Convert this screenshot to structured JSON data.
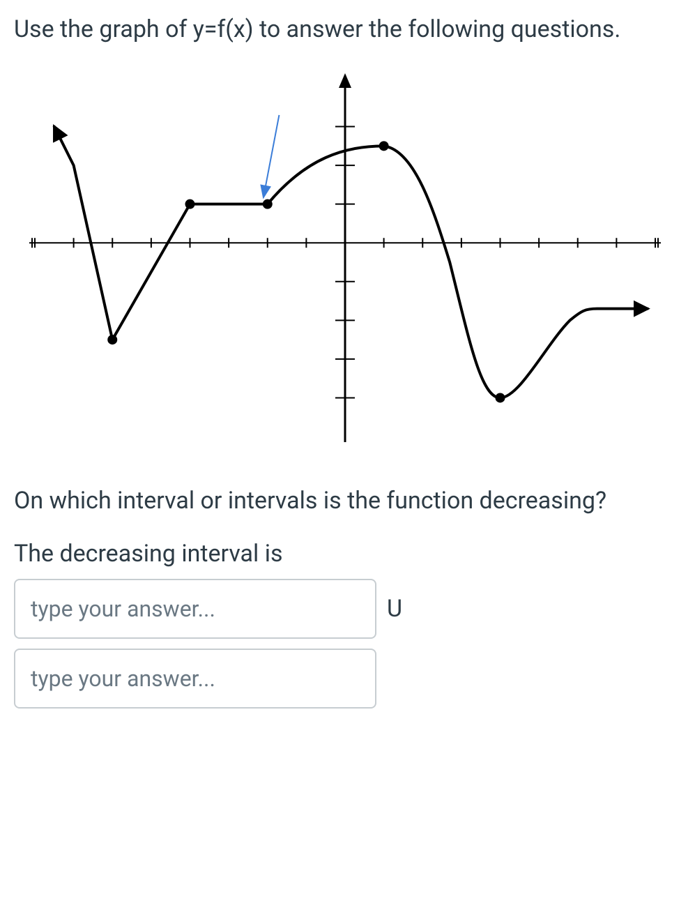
{
  "question": {
    "prompt": "Use the graph of y=f(x) to answer the following questions.",
    "sub_prompt": "On which interval or intervals is the function decreasing?",
    "answer_label": "The decreasing interval is",
    "input_placeholder_1": "type your answer...",
    "input_placeholder_2": "type your answer...",
    "union_symbol": "U"
  },
  "graph": {
    "type": "line",
    "x_range": [
      -8,
      8
    ],
    "y_range": [
      -5,
      4
    ],
    "axis_color": "#000000",
    "tick_color": "#000000",
    "arrow_color": "#3b7dd8",
    "curve_color": "#000000",
    "curve_width": 4,
    "point_color": "#000000",
    "point_radius": 7,
    "x_ticks": [
      -8,
      -7,
      -6,
      -5,
      -4,
      -3,
      -2,
      -1,
      1,
      2,
      3,
      4,
      5,
      6,
      7,
      8
    ],
    "y_ticks": [
      -4,
      -3,
      -2,
      -1,
      1,
      2,
      3
    ],
    "arrow_indicator": {
      "start": [
        -1.7,
        3.3
      ],
      "end": [
        -2.1,
        1.2
      ]
    },
    "closed_points": [
      [
        -6,
        -2.5
      ],
      [
        -4,
        1
      ],
      [
        -2,
        1
      ],
      [
        1,
        2.5
      ],
      [
        4,
        -4
      ]
    ],
    "segments": [
      {
        "type": "arrow_start",
        "points": [
          [
            -7.5,
            3.0
          ],
          [
            -7,
            2
          ]
        ]
      },
      {
        "type": "line",
        "points": [
          [
            -7,
            2
          ],
          [
            -6,
            -2.5
          ]
        ]
      },
      {
        "type": "line",
        "points": [
          [
            -6,
            -2.5
          ],
          [
            -4,
            1
          ]
        ]
      },
      {
        "type": "line",
        "points": [
          [
            -4,
            1
          ],
          [
            -2,
            1
          ]
        ]
      },
      {
        "type": "bezier",
        "points": [
          [
            -2,
            1
          ],
          [
            -1,
            2.2
          ],
          [
            0,
            2.5
          ],
          [
            1,
            2.5
          ]
        ]
      },
      {
        "type": "bezier",
        "points": [
          [
            1,
            2.5
          ],
          [
            1.8,
            2.4
          ],
          [
            2.3,
            0.8
          ],
          [
            2.7,
            -0.5
          ]
        ]
      },
      {
        "type": "bezier",
        "points": [
          [
            2.7,
            -0.5
          ],
          [
            3.2,
            -2.5
          ],
          [
            3.5,
            -4
          ],
          [
            4,
            -4
          ]
        ]
      },
      {
        "type": "bezier",
        "points": [
          [
            4,
            -4
          ],
          [
            4.5,
            -4
          ],
          [
            5.2,
            -2.6
          ],
          [
            5.8,
            -2
          ]
        ]
      },
      {
        "type": "bezier",
        "points": [
          [
            5.8,
            -2
          ],
          [
            6.1,
            -1.75
          ],
          [
            6.2,
            -1.7
          ],
          [
            6.5,
            -1.7
          ]
        ]
      },
      {
        "type": "arrow_end",
        "points": [
          [
            6.5,
            -1.7
          ],
          [
            7.8,
            -1.7
          ]
        ]
      }
    ]
  }
}
